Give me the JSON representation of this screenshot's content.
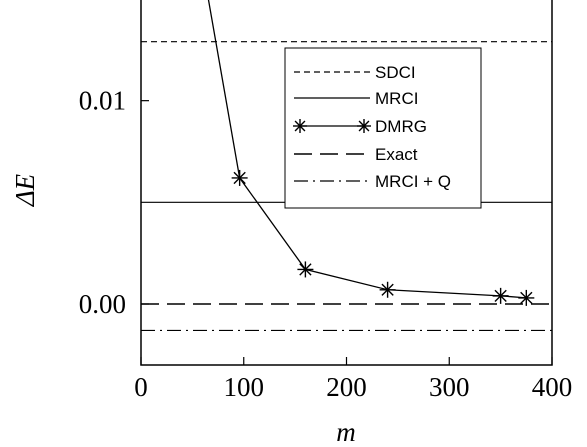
{
  "chart_data": {
    "type": "line",
    "xlabel": "m",
    "ylabel": "ΔE",
    "xlim": [
      0,
      400
    ],
    "ylim": [
      -0.003,
      0.015
    ],
    "grid": false,
    "legend_position": "top-right",
    "x_ticks": [
      {
        "value": 0,
        "label": "0"
      },
      {
        "value": 100,
        "label": "100"
      },
      {
        "value": 200,
        "label": "200"
      },
      {
        "value": 300,
        "label": "300"
      },
      {
        "value": 400,
        "label": "400"
      }
    ],
    "y_ticks": [
      {
        "value": 0.0,
        "label": "0.00"
      },
      {
        "value": 0.01,
        "label": "0.01"
      }
    ],
    "reference_lines": [
      {
        "name": "SDCI",
        "value": 0.0129,
        "dash": "short-dash"
      },
      {
        "name": "MRCI",
        "value": 0.005,
        "dash": "solid"
      },
      {
        "name": "Exact",
        "value": 0.0,
        "dash": "long-dash"
      },
      {
        "name": "MRCI + Q",
        "value": -0.0013,
        "dash": "dash-dot"
      }
    ],
    "series": [
      {
        "name": "DMRG",
        "marker": "asterisk",
        "x": [
          60,
          96,
          160,
          240,
          350,
          375
        ],
        "y": [
          0.0166,
          0.0062,
          0.0017,
          0.0007,
          0.0004,
          0.0003
        ]
      }
    ],
    "legend": [
      "SDCI",
      "MRCI",
      "DMRG",
      "Exact",
      "MRCI + Q"
    ]
  }
}
